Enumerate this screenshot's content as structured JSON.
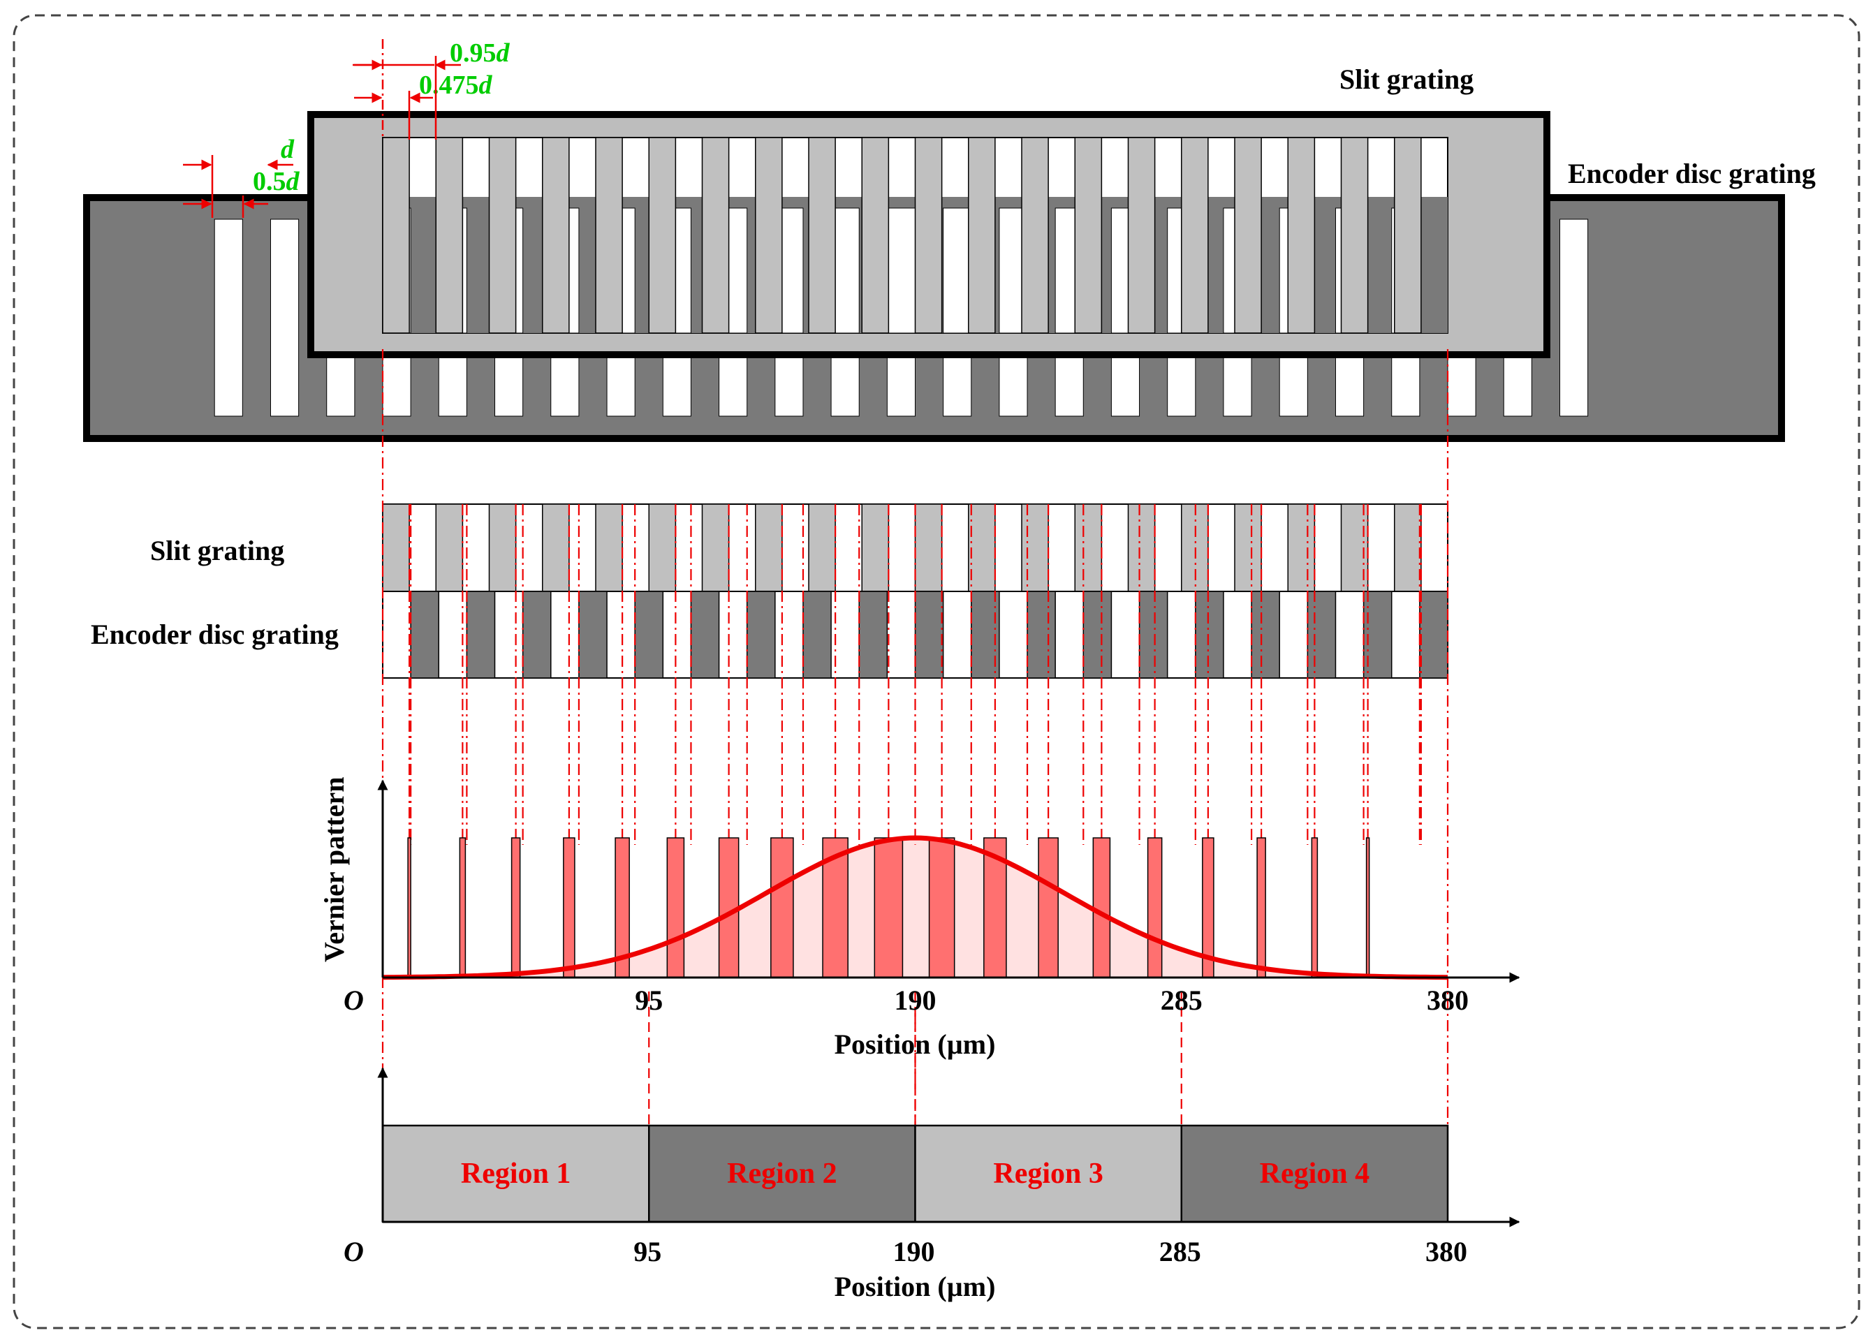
{
  "labels": {
    "slit_grating_top": "Slit grating",
    "encoder_disc_grating_top": "Encoder disc grating",
    "slit_grating_side": "Slit grating",
    "encoder_disc_grating_side": "Encoder disc grating",
    "vernier_axis": "Vernier pattern"
  },
  "dimensions": {
    "d": "d",
    "half_d_num": "0.5",
    "half_d_var": "d",
    "p95_num": "0.95",
    "p95_var": "d",
    "p475_num": "0.475",
    "p475_var": "d"
  },
  "chart_data": {
    "type": "area",
    "ylabel": "Vernier pattern",
    "xlabel": "Position (µm)",
    "origin_label": "O",
    "xlim": [
      0,
      380
    ],
    "x_ticks": [
      "95",
      "190",
      "285",
      "380"
    ],
    "bar_centers": [
      9.5,
      28.5,
      47.5,
      66.5,
      85.5,
      104.5,
      123.5,
      142.5,
      161.5,
      180.5,
      199.5,
      218.5,
      237.5,
      256.5,
      275.5,
      294.5,
      313.5,
      332.5,
      351.5,
      370.5
    ],
    "bar_widths": [
      1,
      2,
      3,
      4,
      5,
      6,
      7,
      8,
      9,
      10,
      9,
      8,
      7,
      6,
      5,
      4,
      3,
      2,
      1,
      0
    ],
    "envelope_peak_x": 190
  },
  "regions_chart": {
    "origin_label": "O",
    "xlabel": "Position (µm)",
    "x_ticks": [
      "95",
      "190",
      "285",
      "380"
    ],
    "regions": [
      {
        "label": "Region 1",
        "from": 0,
        "to": 95,
        "shade": "#c0c0c0"
      },
      {
        "label": "Region 2",
        "from": 95,
        "to": 190,
        "shade": "#7a7a7a"
      },
      {
        "label": "Region 3",
        "from": 190,
        "to": 285,
        "shade": "#c0c0c0"
      },
      {
        "label": "Region 4",
        "from": 285,
        "to": 380,
        "shade": "#7a7a7a"
      }
    ]
  },
  "colors": {
    "light_grey": "#c0c0c0",
    "dark_grey": "#7a7a7a",
    "red": "#ee0000",
    "green": "#00cc00"
  }
}
